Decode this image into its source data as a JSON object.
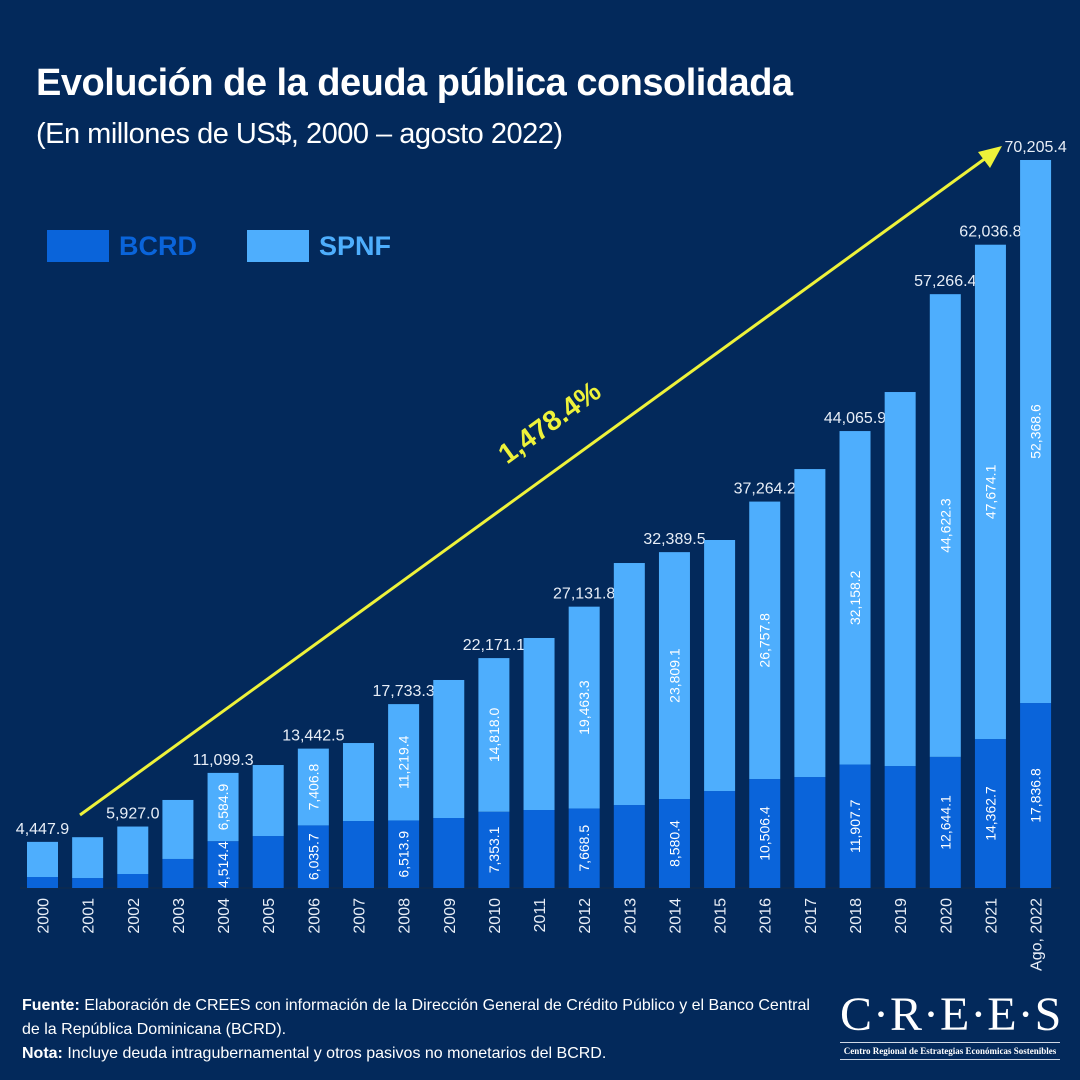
{
  "title": "Evolución de la deuda pública consolidada",
  "subtitle": "(En millones de US$, 2000 – agosto 2022)",
  "legend": [
    {
      "label": "BCRD",
      "color": "#0a64da"
    },
    {
      "label": "SPNF",
      "color": "#4eaefd"
    }
  ],
  "colors": {
    "background": "#03295b",
    "arrow": "#eef23a",
    "text": "#ffffff"
  },
  "chart_data": {
    "type": "bar",
    "stacked": true,
    "categories": [
      "2000",
      "2001",
      "2002",
      "2003",
      "2004",
      "2005",
      "2006",
      "2007",
      "2008",
      "2009",
      "2010",
      "2011",
      "2012",
      "2013",
      "2014",
      "2015",
      "2016",
      "2017",
      "2018",
      "2019",
      "2020",
      "2021",
      "Ago, 2022"
    ],
    "series": [
      {
        "name": "BCRD",
        "values": [
          1060,
          960,
          1350,
          2800,
          4514.4,
          5010,
          6035.7,
          6460,
          6513.9,
          6750,
          7353.1,
          7520,
          7668.5,
          8000,
          8580.4,
          9350,
          10506.4,
          10700,
          11907.7,
          11760,
          12644.1,
          14362.7,
          17836.8
        ],
        "labels": [
          "",
          "",
          "",
          "",
          "4,514.4",
          "",
          "6,035.7",
          "",
          "6,513.9",
          "",
          "7,353.1",
          "",
          "7,668.5",
          "",
          "8,580.4",
          "",
          "10,506.4",
          "",
          "11,907.7",
          "",
          "12,644.1",
          "14,362.7",
          "17,836.8"
        ]
      },
      {
        "name": "SPNF",
        "values": [
          3387.9,
          3940,
          4577,
          5690,
          6584.9,
          6850,
          7406.8,
          7520,
          11219.4,
          13310,
          14818.0,
          16590,
          19463.3,
          23340,
          23809.1,
          24210,
          26757.8,
          29700,
          32158.2,
          36070,
          44622.3,
          47674.1,
          52368.6
        ],
        "labels": [
          "",
          "",
          "",
          "",
          "6,584.9",
          "",
          "7,406.8",
          "",
          "11,219.4",
          "",
          "14,818.0",
          "",
          "19,463.3",
          "",
          "23,809.1",
          "",
          "26,757.8",
          "",
          "32,158.2",
          "",
          "44,622.3",
          "47,674.1",
          "52,368.6"
        ]
      }
    ],
    "total_labels": [
      "4,447.9",
      "",
      "5,927.0",
      "",
      "11,099.3",
      "",
      "13,442.5",
      "",
      "17,733.3",
      "",
      "22,171.1",
      "",
      "27,131.8",
      "",
      "32,389.5",
      "",
      "37,264.2",
      "",
      "44,065.9",
      "",
      "57,266.4",
      "62,036.8",
      "70,205.4"
    ],
    "annotation": "1,478.4%",
    "ylim": [
      0,
      72000
    ],
    "grid": false,
    "legend_position": "top-left"
  },
  "footer": {
    "source_label": "Fuente:",
    "source_text": " Elaboración de CREES con información de la Dirección General de Crédito Público y el Banco Central de la República Dominicana (BCRD).",
    "note_label": "Nota:",
    "note_text": " Incluye deuda intragubernamental y otros pasivos no monetarios del BCRD."
  },
  "logo": {
    "name": "C·R·E·E·S",
    "tagline": "Centro Regional de Estrategias Económicas Sostenibles"
  }
}
